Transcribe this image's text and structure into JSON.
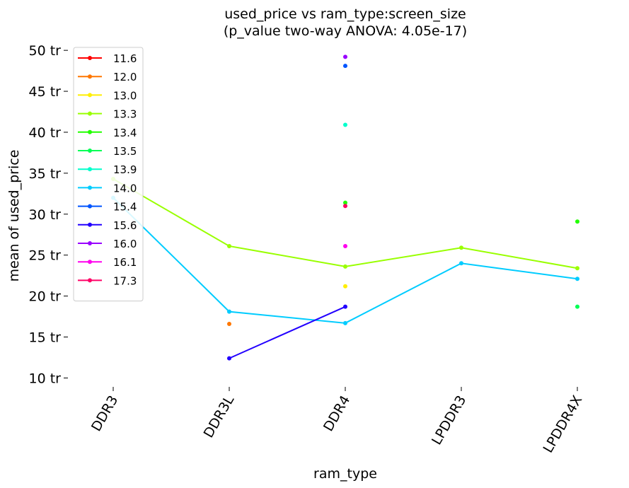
{
  "chart_data": {
    "type": "line",
    "title_line1": "used_price vs ram_type:screen_size",
    "title_line2": "(p_value two-way ANOVA: 4.05e-17)",
    "xlabel": "ram_type",
    "ylabel": "mean of used_price",
    "categories": [
      "DDR3",
      "DDR3L",
      "DDR4",
      "LPDDR3",
      "LPDDR4X"
    ],
    "ylim": [
      9,
      52
    ],
    "yticks": [
      10,
      15,
      20,
      25,
      30,
      35,
      40,
      45,
      50
    ],
    "ytick_suffix": " tr",
    "grid": false,
    "legend_position": "upper-left",
    "series": [
      {
        "name": "11.6",
        "color": "#ff0000",
        "values": [
          null,
          null,
          null,
          null,
          null
        ]
      },
      {
        "name": "12.0",
        "color": "#ff7700",
        "values": [
          null,
          16.6,
          null,
          null,
          null
        ]
      },
      {
        "name": "13.0",
        "color": "#ffee00",
        "values": [
          null,
          null,
          21.2,
          null,
          null
        ]
      },
      {
        "name": "13.3",
        "color": "#99ff00",
        "values": [
          34.3,
          26.1,
          23.6,
          25.9,
          23.4
        ]
      },
      {
        "name": "13.4",
        "color": "#22ff00",
        "values": [
          null,
          null,
          31.4,
          null,
          29.1
        ]
      },
      {
        "name": "13.5",
        "color": "#00ff55",
        "values": [
          null,
          null,
          null,
          null,
          18.7
        ]
      },
      {
        "name": "13.9",
        "color": "#00ffcc",
        "values": [
          null,
          null,
          40.9,
          null,
          null
        ]
      },
      {
        "name": "14.0",
        "color": "#00ccff",
        "values": [
          32.0,
          18.1,
          16.7,
          24.0,
          22.1
        ]
      },
      {
        "name": "15.4",
        "color": "#0055ff",
        "values": [
          null,
          null,
          48.1,
          null,
          null
        ]
      },
      {
        "name": "15.6",
        "color": "#2200ff",
        "values": [
          null,
          12.4,
          18.7,
          null,
          null
        ]
      },
      {
        "name": "16.0",
        "color": "#9900ff",
        "values": [
          null,
          null,
          49.2,
          null,
          null
        ]
      },
      {
        "name": "16.1",
        "color": "#ff00ee",
        "values": [
          null,
          null,
          26.1,
          null,
          null
        ]
      },
      {
        "name": "17.3",
        "color": "#ff0066",
        "values": [
          null,
          null,
          31.0,
          null,
          null
        ]
      }
    ]
  }
}
